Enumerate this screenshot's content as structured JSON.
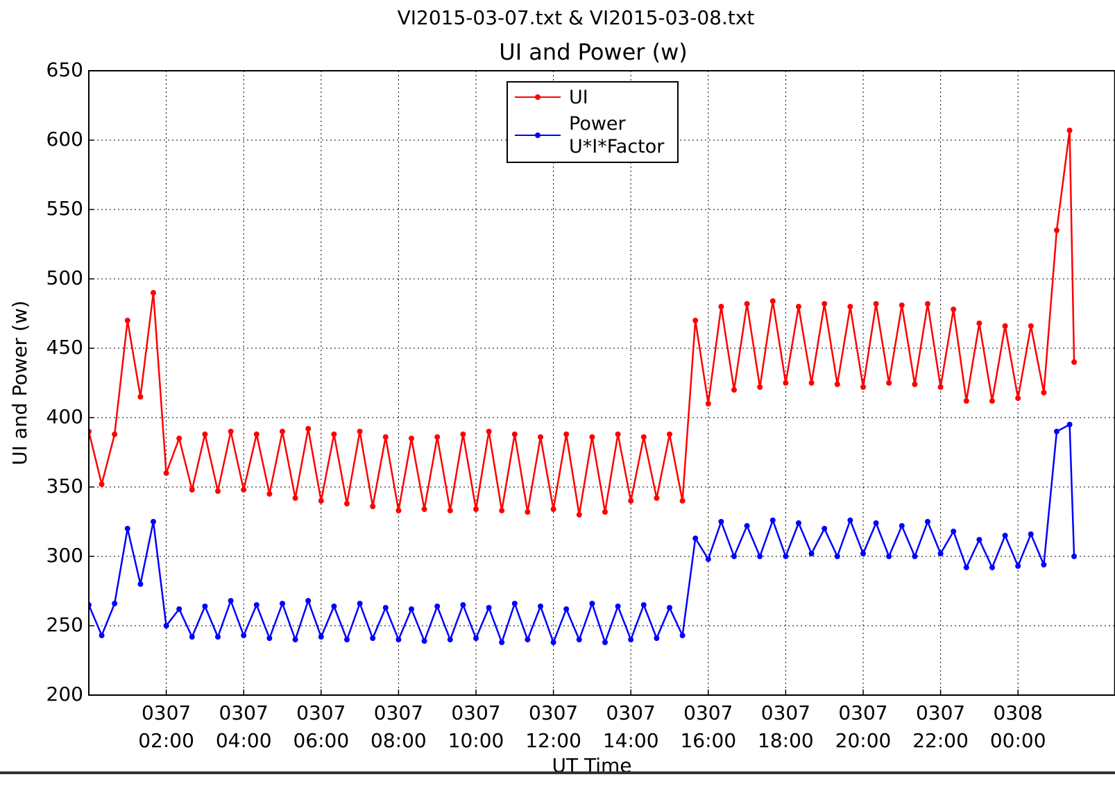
{
  "chart_data": {
    "type": "line",
    "suptitle": "VI2015-03-07.txt & VI2015-03-08.txt",
    "title": "UI and Power (w)",
    "xlabel": "UT Time",
    "ylabel": "UI and Power (w)",
    "grid": true,
    "legend": "upper center",
    "xlim": [
      "2015-03-07T00:00",
      "2015-03-08T02:30"
    ],
    "ylim": [
      200,
      650
    ],
    "yticks": [
      200,
      250,
      300,
      350,
      400,
      450,
      500,
      550,
      600,
      650
    ],
    "xticks": [
      {
        "value": "2015-03-07T02:00",
        "label": "0307\n02:00"
      },
      {
        "value": "2015-03-07T04:00",
        "label": "0307\n04:00"
      },
      {
        "value": "2015-03-07T06:00",
        "label": "0307\n06:00"
      },
      {
        "value": "2015-03-07T08:00",
        "label": "0307\n08:00"
      },
      {
        "value": "2015-03-07T10:00",
        "label": "0307\n10:00"
      },
      {
        "value": "2015-03-07T12:00",
        "label": "0307\n12:00"
      },
      {
        "value": "2015-03-07T14:00",
        "label": "0307\n14:00"
      },
      {
        "value": "2015-03-07T16:00",
        "label": "0307\n16:00"
      },
      {
        "value": "2015-03-07T18:00",
        "label": "0307\n18:00"
      },
      {
        "value": "2015-03-07T20:00",
        "label": "0307\n20:00"
      },
      {
        "value": "2015-03-07T22:00",
        "label": "0307\n22:00"
      },
      {
        "value": "2015-03-08T00:00",
        "label": "0308\n00:00"
      }
    ],
    "x": [
      "2015-03-07T00:00",
      "2015-03-07T00:20",
      "2015-03-07T00:40",
      "2015-03-07T01:00",
      "2015-03-07T01:20",
      "2015-03-07T01:40",
      "2015-03-07T02:00",
      "2015-03-07T02:20",
      "2015-03-07T02:40",
      "2015-03-07T03:00",
      "2015-03-07T03:20",
      "2015-03-07T03:40",
      "2015-03-07T04:00",
      "2015-03-07T04:20",
      "2015-03-07T04:40",
      "2015-03-07T05:00",
      "2015-03-07T05:20",
      "2015-03-07T05:40",
      "2015-03-07T06:00",
      "2015-03-07T06:20",
      "2015-03-07T06:40",
      "2015-03-07T07:00",
      "2015-03-07T07:20",
      "2015-03-07T07:40",
      "2015-03-07T08:00",
      "2015-03-07T08:20",
      "2015-03-07T08:40",
      "2015-03-07T09:00",
      "2015-03-07T09:20",
      "2015-03-07T09:40",
      "2015-03-07T10:00",
      "2015-03-07T10:20",
      "2015-03-07T10:40",
      "2015-03-07T11:00",
      "2015-03-07T11:20",
      "2015-03-07T11:40",
      "2015-03-07T12:00",
      "2015-03-07T12:20",
      "2015-03-07T12:40",
      "2015-03-07T13:00",
      "2015-03-07T13:20",
      "2015-03-07T13:40",
      "2015-03-07T14:00",
      "2015-03-07T14:20",
      "2015-03-07T14:40",
      "2015-03-07T15:00",
      "2015-03-07T15:20",
      "2015-03-07T15:40",
      "2015-03-07T16:00",
      "2015-03-07T16:20",
      "2015-03-07T16:40",
      "2015-03-07T17:00",
      "2015-03-07T17:20",
      "2015-03-07T17:40",
      "2015-03-07T18:00",
      "2015-03-07T18:20",
      "2015-03-07T18:40",
      "2015-03-07T19:00",
      "2015-03-07T19:20",
      "2015-03-07T19:40",
      "2015-03-07T20:00",
      "2015-03-07T20:20",
      "2015-03-07T20:40",
      "2015-03-07T21:00",
      "2015-03-07T21:20",
      "2015-03-07T21:40",
      "2015-03-07T22:00",
      "2015-03-07T22:20",
      "2015-03-07T22:40",
      "2015-03-07T23:00",
      "2015-03-07T23:20",
      "2015-03-07T23:40",
      "2015-03-08T00:00",
      "2015-03-08T00:20",
      "2015-03-08T00:40",
      "2015-03-08T01:00",
      "2015-03-08T01:20",
      "2015-03-08T01:27"
    ],
    "series": [
      {
        "name": "UI",
        "color": "#ff0000",
        "values": [
          390,
          352,
          388,
          470,
          415,
          490,
          360,
          385,
          348,
          388,
          347,
          390,
          348,
          388,
          345,
          390,
          342,
          392,
          340,
          388,
          338,
          390,
          336,
          386,
          333,
          385,
          334,
          386,
          333,
          388,
          334,
          390,
          333,
          388,
          332,
          386,
          334,
          388,
          330,
          386,
          332,
          388,
          340,
          386,
          342,
          388,
          340,
          470,
          410,
          480,
          420,
          482,
          422,
          484,
          425,
          480,
          425,
          482,
          424,
          480,
          422,
          482,
          425,
          481,
          424,
          482,
          422,
          478,
          412,
          468,
          412,
          466,
          414,
          466,
          418,
          535,
          607,
          440
        ]
      },
      {
        "name": "Power\nU*I*Factor",
        "color": "#0000ff",
        "values": [
          265,
          243,
          266,
          320,
          280,
          325,
          250,
          262,
          242,
          264,
          242,
          268,
          243,
          265,
          241,
          266,
          240,
          268,
          242,
          264,
          240,
          266,
          241,
          263,
          240,
          262,
          239,
          264,
          240,
          265,
          241,
          263,
          238,
          266,
          240,
          264,
          238,
          262,
          240,
          266,
          238,
          264,
          240,
          265,
          241,
          263,
          243,
          313,
          298,
          325,
          300,
          322,
          300,
          326,
          300,
          324,
          302,
          320,
          300,
          326,
          302,
          324,
          300,
          322,
          300,
          325,
          302,
          318,
          292,
          312,
          292,
          315,
          293,
          316,
          294,
          390,
          395,
          300
        ]
      }
    ]
  }
}
